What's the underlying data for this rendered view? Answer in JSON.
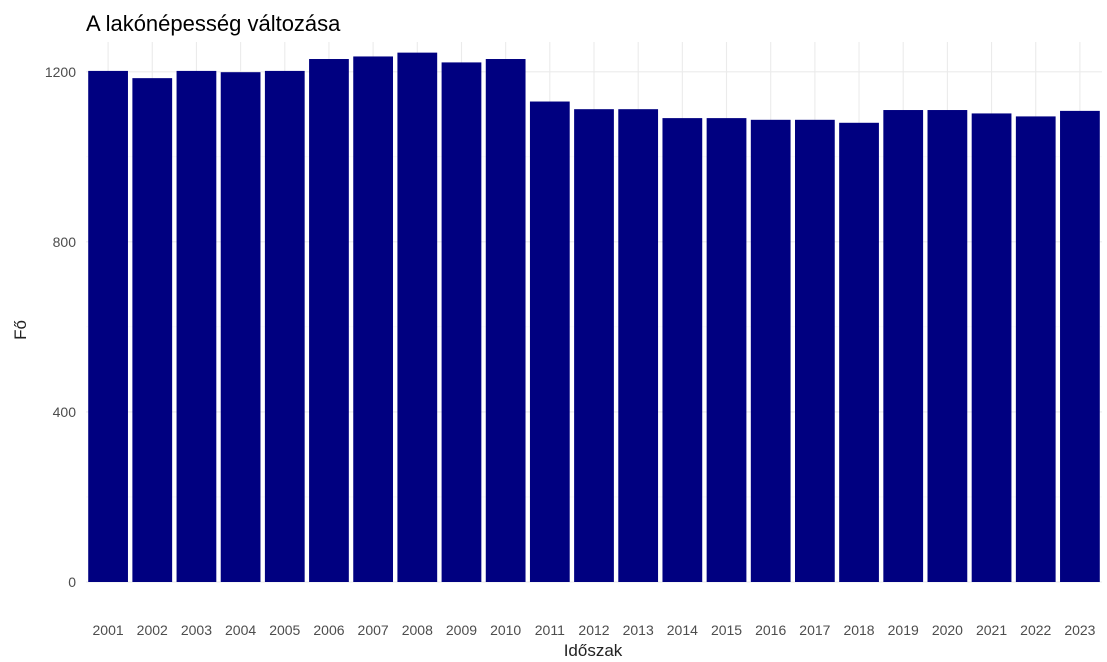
{
  "chart_data": {
    "type": "bar",
    "title": "A lakónépesség változása",
    "xlabel": "Időszak",
    "ylabel": "Fő",
    "categories": [
      "2001",
      "2002",
      "2003",
      "2004",
      "2005",
      "2006",
      "2007",
      "2008",
      "2009",
      "2010",
      "2011",
      "2012",
      "2013",
      "2014",
      "2015",
      "2016",
      "2017",
      "2018",
      "2019",
      "2020",
      "2021",
      "2022",
      "2023"
    ],
    "values": [
      1202,
      1185,
      1202,
      1199,
      1202,
      1230,
      1236,
      1245,
      1222,
      1230,
      1130,
      1112,
      1112,
      1091,
      1091,
      1087,
      1087,
      1080,
      1110,
      1110,
      1102,
      1095,
      1108
    ],
    "ylim": [
      0,
      1270
    ],
    "yticks": [
      0,
      400,
      800,
      1200
    ],
    "bar_color": "#000080",
    "grid": true,
    "legend": "none"
  }
}
